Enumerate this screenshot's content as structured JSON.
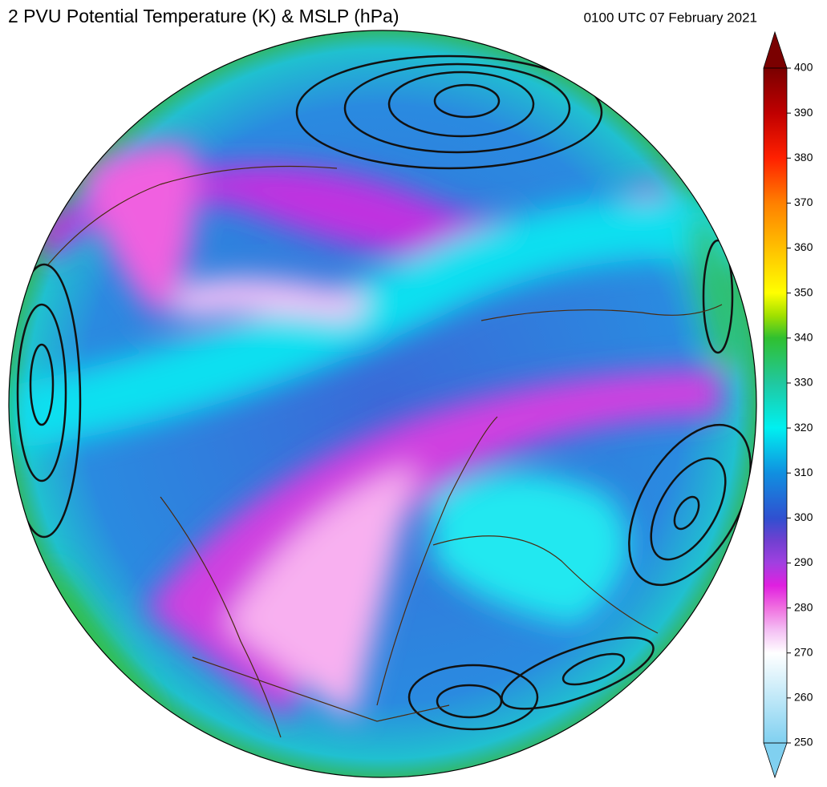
{
  "title": "2 PVU Potential Temperature (K) & MSLP (hPa)",
  "valid_time": "0100 UTC 07 February 2021",
  "colorbar": {
    "lim": [
      250,
      400
    ],
    "ticks": [
      250,
      260,
      270,
      280,
      290,
      300,
      310,
      320,
      330,
      340,
      350,
      360,
      370,
      380,
      390,
      400
    ]
  }
}
